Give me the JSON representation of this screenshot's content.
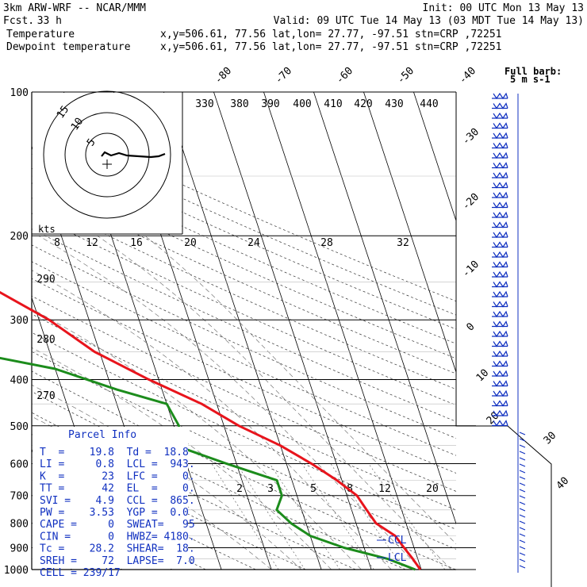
{
  "header": {
    "model": "3km ARW-WRF -- NCAR/MMM",
    "fcst_label": "Fcst.",
    "fcst_value": "33 h",
    "init": "Init: 00 UTC Mon 13 May 13",
    "valid": "Valid: 09 UTC Tue 14 May 13 (03 MDT Tue 14 May 13)",
    "temp_label": "Temperature",
    "dew_label": "Dewpoint temperature",
    "location": "x,y=506.61, 77.56   lat,lon= 27.77, -97.51   stn=CRP ,72251"
  },
  "barb_key": {
    "title": "Full barb:",
    "value": "5 m s-1"
  },
  "pressure_labels": [
    "100",
    "200",
    "300",
    "400",
    "500",
    "600",
    "700",
    "800",
    "900",
    "1000"
  ],
  "skew_temp_labels": [
    "-80",
    "-70",
    "-60",
    "-50",
    "-40",
    "-30",
    "-20",
    "-10",
    "0",
    "10",
    "20",
    "30",
    "40"
  ],
  "theta_labels": [
    "330",
    "380",
    "390",
    "400",
    "410",
    "420",
    "430",
    "440"
  ],
  "theta_low_labels": [
    "290",
    "280",
    "270"
  ],
  "mixing_ratio_labels": [
    "2",
    "3",
    "5",
    "8",
    "12",
    "20"
  ],
  "hodo": {
    "ring_labels": [
      "15",
      "10",
      "5"
    ],
    "kts_label": "kts",
    "speed_labels": [
      "8",
      "12",
      "16",
      "20",
      "24",
      "28",
      "32"
    ]
  },
  "parcel": {
    "title": "Parcel Info",
    "rows": [
      "T  =    19.8  Td =  18.8",
      "LI =     0.8  LCL =  943.",
      "K  =      23  LFC =    0.",
      "TT =      42  EL  =    0.",
      "SVI =    4.9  CCL =  865.",
      "PW =    3.53  YGP =  0.0",
      "CAPE =     0  SWEAT=   95",
      "CIN =      0  HWBZ= 4180.",
      "Tc =    28.2  SHEAR=  18.",
      "SREH =    72  LAPSE=  7.0",
      "CELL = 239/17"
    ]
  },
  "level_markers": {
    "ccl": "CCL",
    "lcl": "LCL"
  },
  "colors": {
    "temperature": "#e8141c",
    "dewpoint": "#1c8c1c",
    "wind": "#1030c0",
    "frame": "#000000"
  },
  "chart_data": {
    "type": "line",
    "title": "",
    "ylabel": "",
    "xlabel": "",
    "y_scale": "log",
    "ylim": [
      1000,
      100
    ],
    "series": [
      {
        "name": "Temperature",
        "points": [
          [
            100,
            -58
          ],
          [
            115,
            -63
          ],
          [
            130,
            -67
          ],
          [
            150,
            -70
          ],
          [
            175,
            -69
          ],
          [
            200,
            -62
          ],
          [
            250,
            -49
          ],
          [
            300,
            -38
          ],
          [
            350,
            -31
          ],
          [
            400,
            -22
          ],
          [
            450,
            -13
          ],
          [
            500,
            -7
          ],
          [
            550,
            0
          ],
          [
            600,
            5
          ],
          [
            650,
            9
          ],
          [
            700,
            12
          ],
          [
            750,
            13
          ],
          [
            800,
            14
          ],
          [
            850,
            17
          ],
          [
            900,
            18
          ],
          [
            950,
            19
          ],
          [
            1000,
            19.8
          ]
        ]
      },
      {
        "name": "Dewpoint temperature",
        "points": [
          [
            100,
            -88
          ],
          [
            130,
            -91
          ],
          [
            150,
            -92
          ],
          [
            175,
            -90
          ],
          [
            200,
            -85
          ],
          [
            230,
            -80
          ],
          [
            275,
            -90
          ],
          [
            300,
            -88
          ],
          [
            330,
            -68
          ],
          [
            380,
            -40
          ],
          [
            420,
            -29
          ],
          [
            450,
            -20
          ],
          [
            500,
            -19
          ],
          [
            550,
            -21
          ],
          [
            600,
            -12
          ],
          [
            650,
            -3
          ],
          [
            700,
            -3
          ],
          [
            750,
            -5
          ],
          [
            800,
            -3
          ],
          [
            850,
            0
          ],
          [
            900,
            6
          ],
          [
            950,
            14
          ],
          [
            1000,
            18.8
          ]
        ]
      }
    ]
  }
}
